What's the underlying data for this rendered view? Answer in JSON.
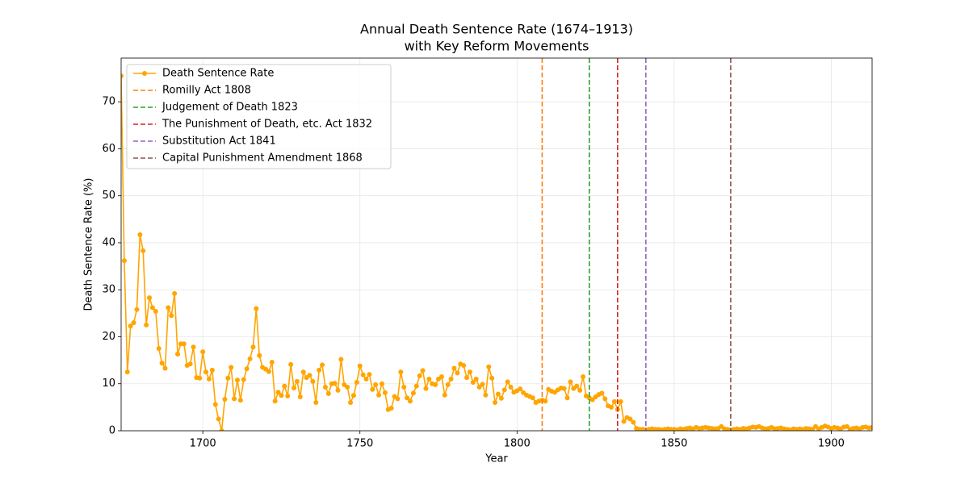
{
  "chart_data": {
    "type": "line",
    "title": "Annual Death Sentence Rate (1674–1913)",
    "subtitle": "with Key Reform Movements",
    "x_label": "Year",
    "y_label": "Death Sentence Rate (%)",
    "x": [
      1674,
      1675,
      1676,
      1677,
      1678,
      1679,
      1680,
      1681,
      1682,
      1683,
      1684,
      1685,
      1686,
      1687,
      1688,
      1689,
      1690,
      1691,
      1692,
      1693,
      1694,
      1695,
      1696,
      1697,
      1698,
      1699,
      1700,
      1701,
      1702,
      1703,
      1704,
      1705,
      1706,
      1707,
      1708,
      1709,
      1710,
      1711,
      1712,
      1713,
      1714,
      1715,
      1716,
      1717,
      1718,
      1719,
      1720,
      1721,
      1722,
      1723,
      1724,
      1725,
      1726,
      1727,
      1728,
      1729,
      1730,
      1731,
      1732,
      1733,
      1734,
      1735,
      1736,
      1737,
      1738,
      1739,
      1740,
      1741,
      1742,
      1743,
      1744,
      1745,
      1746,
      1747,
      1748,
      1749,
      1750,
      1751,
      1752,
      1753,
      1754,
      1755,
      1756,
      1757,
      1758,
      1759,
      1760,
      1761,
      1762,
      1763,
      1764,
      1765,
      1766,
      1767,
      1768,
      1769,
      1770,
      1771,
      1772,
      1773,
      1774,
      1775,
      1776,
      1777,
      1778,
      1779,
      1780,
      1781,
      1782,
      1783,
      1784,
      1785,
      1786,
      1787,
      1788,
      1789,
      1790,
      1791,
      1792,
      1793,
      1794,
      1795,
      1796,
      1797,
      1798,
      1799,
      1800,
      1801,
      1802,
      1803,
      1804,
      1805,
      1806,
      1807,
      1808,
      1809,
      1810,
      1811,
      1812,
      1813,
      1814,
      1815,
      1816,
      1817,
      1818,
      1819,
      1820,
      1821,
      1822,
      1823,
      1824,
      1825,
      1826,
      1827,
      1828,
      1829,
      1830,
      1831,
      1832,
      1833,
      1834,
      1835,
      1836,
      1837,
      1838,
      1839,
      1840,
      1841,
      1842,
      1843,
      1844,
      1845,
      1846,
      1847,
      1848,
      1849,
      1850,
      1851,
      1852,
      1853,
      1854,
      1855,
      1856,
      1857,
      1858,
      1859,
      1860,
      1861,
      1862,
      1863,
      1864,
      1865,
      1866,
      1867,
      1868,
      1869,
      1870,
      1871,
      1872,
      1873,
      1874,
      1875,
      1876,
      1877,
      1878,
      1879,
      1880,
      1881,
      1882,
      1883,
      1884,
      1885,
      1886,
      1887,
      1888,
      1889,
      1890,
      1891,
      1892,
      1893,
      1894,
      1895,
      1896,
      1897,
      1898,
      1899,
      1900,
      1901,
      1902,
      1903,
      1904,
      1905,
      1906,
      1907,
      1908,
      1909,
      1910,
      1911,
      1912,
      1913
    ],
    "series": [
      {
        "name": "Death Sentence Rate",
        "color": "#ffa500",
        "values": [
          75.5,
          36.2,
          12.5,
          22.3,
          23,
          25.8,
          41.7,
          38.3,
          22.5,
          28.3,
          26.2,
          25.4,
          17.5,
          14.4,
          13.3,
          26.2,
          24.5,
          29.2,
          16.3,
          18.5,
          18.5,
          13.9,
          14.2,
          17.8,
          11.3,
          11.2,
          16.8,
          12.5,
          11,
          12.9,
          5.6,
          2.5,
          0,
          6.7,
          11.2,
          13.5,
          6.8,
          10.8,
          6.5,
          10.9,
          13.2,
          15.3,
          17.8,
          26,
          16,
          13.5,
          13.1,
          12.6,
          14.6,
          6.3,
          8.2,
          7.5,
          9.5,
          7.4,
          14.1,
          9.1,
          10.5,
          7.2,
          12.5,
          11.3,
          11.8,
          10.5,
          6,
          12.9,
          14,
          9.3,
          7.9,
          10,
          10.1,
          8.6,
          15.2,
          9.8,
          9.3,
          6,
          7.5,
          10.3,
          13.8,
          11.9,
          11,
          12,
          8.8,
          9.8,
          7.6,
          10,
          8.1,
          4.5,
          4.8,
          7.3,
          6.8,
          12.5,
          9.3,
          7,
          6.3,
          8,
          9.5,
          11.7,
          12.8,
          9,
          11,
          10,
          9.8,
          11,
          11.5,
          7.6,
          9.8,
          11,
          13.3,
          12.3,
          14.2,
          13.9,
          11.3,
          12.5,
          10.3,
          11,
          9.3,
          9.9,
          7.6,
          13.6,
          11.2,
          6,
          7.8,
          6.9,
          8.7,
          10.4,
          9.3,
          8.2,
          8.5,
          8.9,
          8.1,
          7.6,
          7.3,
          7,
          6,
          6.3,
          6.5,
          6.3,
          8.8,
          8.4,
          8.2,
          8.7,
          9.1,
          9,
          7,
          10.4,
          9,
          9.5,
          8.6,
          11.5,
          7.4,
          7,
          6.6,
          7.2,
          7.7,
          8,
          6.8,
          5.3,
          5,
          6.2,
          4.5,
          6.2,
          2,
          2.8,
          2.5,
          1.8,
          0.5,
          0.3,
          0.3,
          0.2,
          0.3,
          0.4,
          0.3,
          0.3,
          0.2,
          0.3,
          0.4,
          0.3,
          0.3,
          0.2,
          0.4,
          0.3,
          0.5,
          0.6,
          0.4,
          0.7,
          0.5,
          0.6,
          0.7,
          0.6,
          0.5,
          0.4,
          0.5,
          0.9,
          0.4,
          0.3,
          0.2,
          0.3,
          0.4,
          0.3,
          0.5,
          0.4,
          0.6,
          0.8,
          0.7,
          0.9,
          0.6,
          0.4,
          0.5,
          0.7,
          0.4,
          0.5,
          0.6,
          0.4,
          0.3,
          0.2,
          0.4,
          0.3,
          0.4,
          0.3,
          0.5,
          0.4,
          0.3,
          0.9,
          0.4,
          0.7,
          1.0,
          0.8,
          0.5,
          0.7,
          0.6,
          0.4,
          0.8,
          0.9,
          0.3,
          0.5,
          0.6,
          0.4,
          0.7,
          0.8,
          0.6,
          0.7
        ]
      }
    ],
    "reference_lines": [
      {
        "name": "Romilly Act 1808",
        "x": 1808,
        "color": "#ff7f0e"
      },
      {
        "name": "Judgement of Death 1823",
        "x": 1823,
        "color": "#2ca02c"
      },
      {
        "name": "The Punishment of Death, etc. Act 1832",
        "x": 1832,
        "color": "#d62728"
      },
      {
        "name": "Substitution Act 1841",
        "x": 1841,
        "color": "#9467bd"
      },
      {
        "name": "Capital Punishment Amendment 1868",
        "x": 1868,
        "color": "#8c564b"
      }
    ],
    "xlim": [
      1674,
      1913
    ],
    "ylim": [
      0,
      79.3
    ],
    "xticks": [
      1700,
      1750,
      1800,
      1850,
      1900
    ],
    "yticks": [
      0,
      10,
      20,
      30,
      40,
      50,
      60,
      70
    ],
    "grid": true,
    "legend": "upper left"
  }
}
